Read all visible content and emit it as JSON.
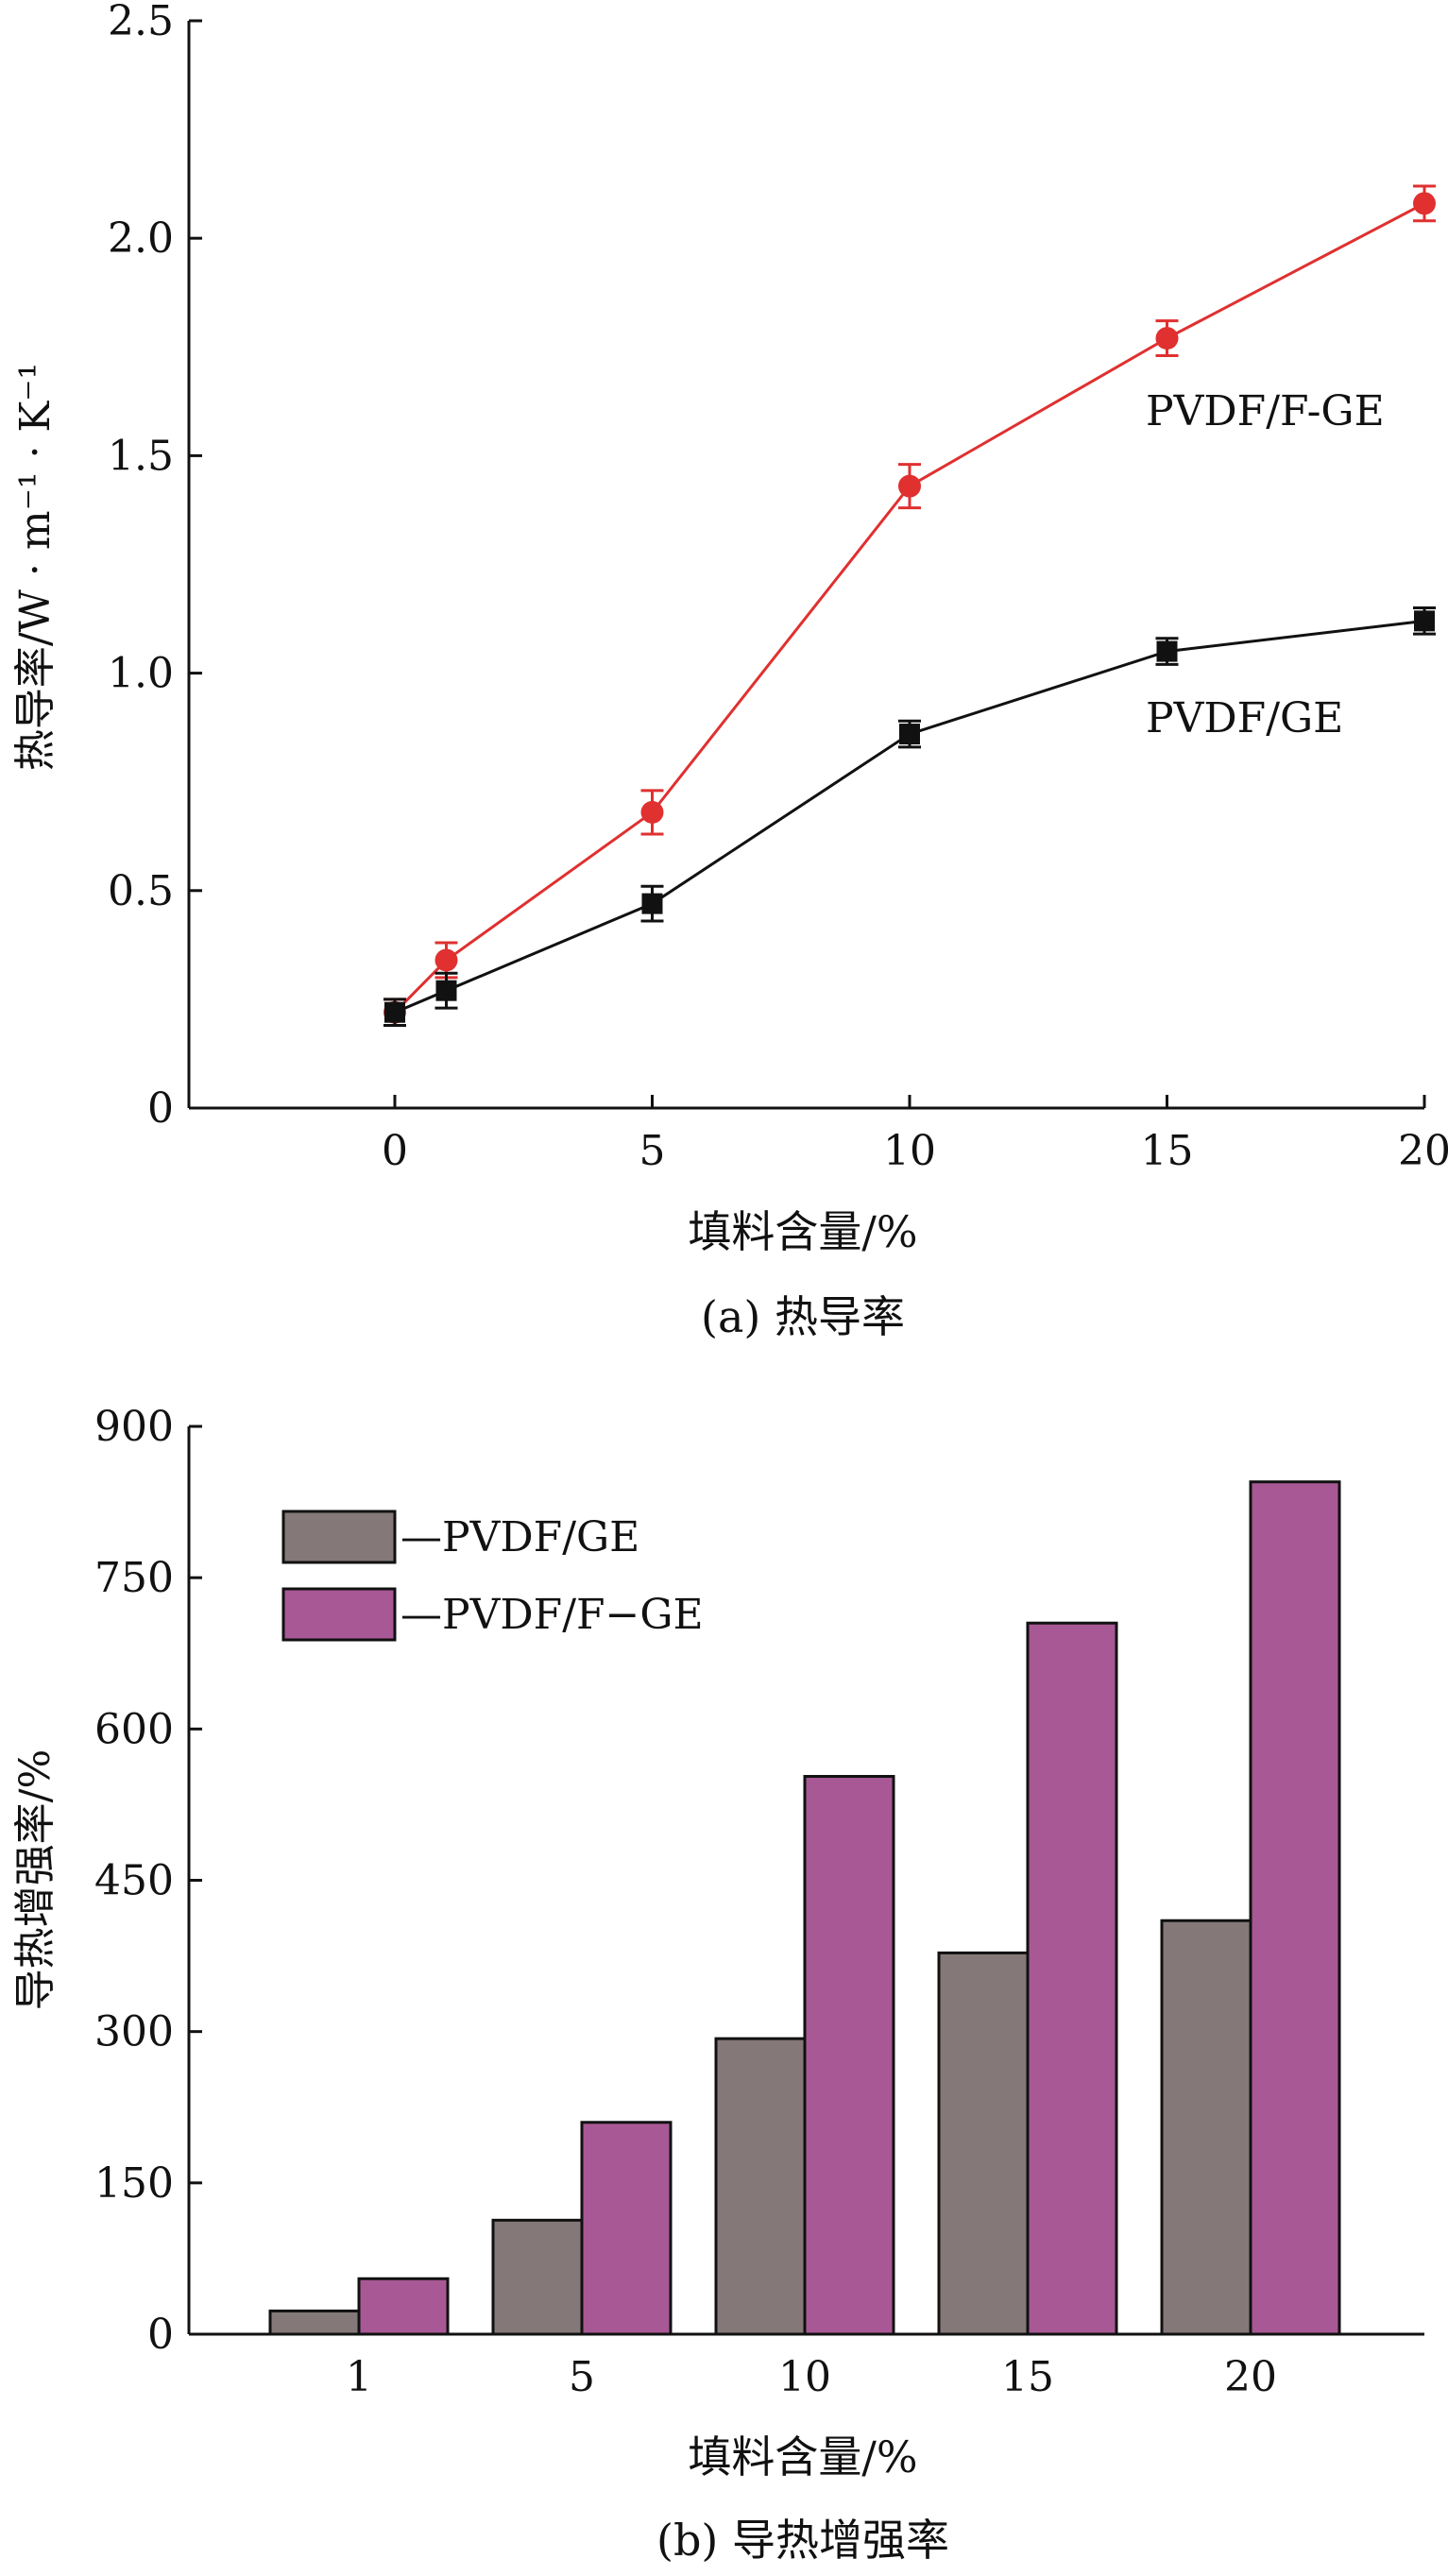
{
  "chart_data": [
    {
      "type": "line",
      "caption": "(a) 热导率",
      "xlabel": "填料含量/%",
      "ylabel": "热导率/W · m⁻¹ · K⁻¹",
      "xlim": [
        -4,
        20
      ],
      "ylim": [
        0,
        2.5
      ],
      "xticks": [
        0,
        5,
        10,
        15,
        20
      ],
      "yticks": [
        {
          "v": 0,
          "label": "0"
        },
        {
          "v": 0.5,
          "label": "0.5"
        },
        {
          "v": 1.0,
          "label": "1.0"
        },
        {
          "v": 1.5,
          "label": "1.5"
        },
        {
          "v": 2.0,
          "label": "2.0"
        },
        {
          "v": 2.5,
          "label": "2.5"
        }
      ],
      "series": [
        {
          "name": "PVDF/F-GE",
          "color": "#e03030",
          "marker": "circle",
          "x": [
            0,
            1,
            5,
            10,
            15,
            20
          ],
          "y": [
            0.22,
            0.34,
            0.68,
            1.43,
            1.77,
            2.08
          ],
          "err": [
            0.03,
            0.04,
            0.05,
            0.05,
            0.04,
            0.04
          ]
        },
        {
          "name": "PVDF/GE",
          "color": "#111111",
          "marker": "square",
          "x": [
            0,
            1,
            5,
            10,
            15,
            20
          ],
          "y": [
            0.22,
            0.27,
            0.47,
            0.86,
            1.05,
            1.12
          ],
          "err": [
            0.03,
            0.04,
            0.04,
            0.03,
            0.03,
            0.03
          ]
        }
      ]
    },
    {
      "type": "bar",
      "caption": "(b) 导热增强率",
      "xlabel": "填料含量/%",
      "ylabel": "导热增强率/%",
      "categories": [
        "1",
        "5",
        "10",
        "15",
        "20"
      ],
      "ylim": [
        0,
        900
      ],
      "yticks": [
        0,
        150,
        300,
        450,
        600,
        750,
        900
      ],
      "legend_position": "top-left",
      "series": [
        {
          "name": "—PVDF/GE",
          "color": "#847978",
          "values": [
            23,
            113,
            293,
            378,
            410
          ]
        },
        {
          "name": "—PVDF/F−GE",
          "color": "#a85894",
          "values": [
            55,
            210,
            553,
            705,
            845
          ]
        }
      ]
    }
  ]
}
